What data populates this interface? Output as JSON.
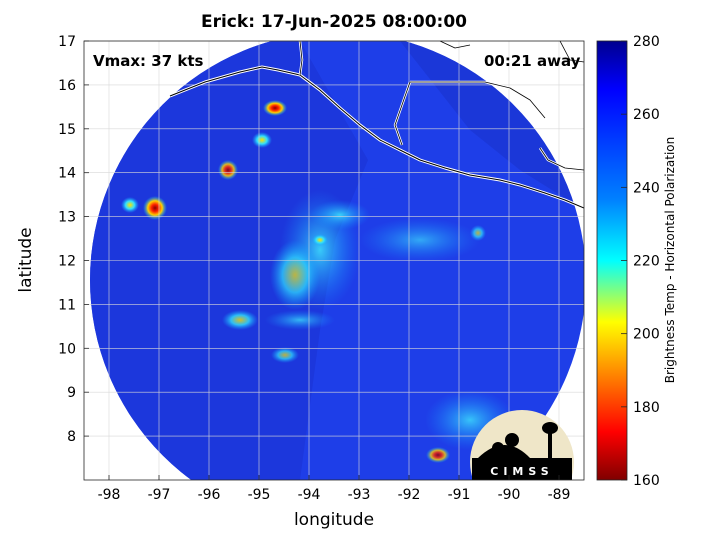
{
  "title": "Erick: 17-Jun-2025 08:00:00",
  "vmax_label": "Vmax: 37 kts",
  "time_away": "00:21 away",
  "xlabel": "longitude",
  "ylabel": "latitude",
  "colorbar_label": "Brightness Temp - Horizontal Polarization",
  "logo_text": "CIMSS",
  "map": {
    "lon_range": [
      -98.5,
      -88.5
    ],
    "lat_range": [
      7,
      17
    ],
    "lon_ticks": [
      -98,
      -97,
      -96,
      -95,
      -94,
      -93,
      -92,
      -91,
      -90,
      -89
    ],
    "lat_ticks": [
      8,
      9,
      10,
      11,
      12,
      13,
      14,
      15,
      16,
      17
    ],
    "grid": true,
    "colormap": "jet",
    "colorbar_range": [
      160,
      280
    ],
    "colorbar_ticks": [
      160,
      180,
      200,
      220,
      240,
      260,
      280
    ],
    "coastline_color": "#ffffff",
    "background_color": "#1e3ee8"
  }
}
